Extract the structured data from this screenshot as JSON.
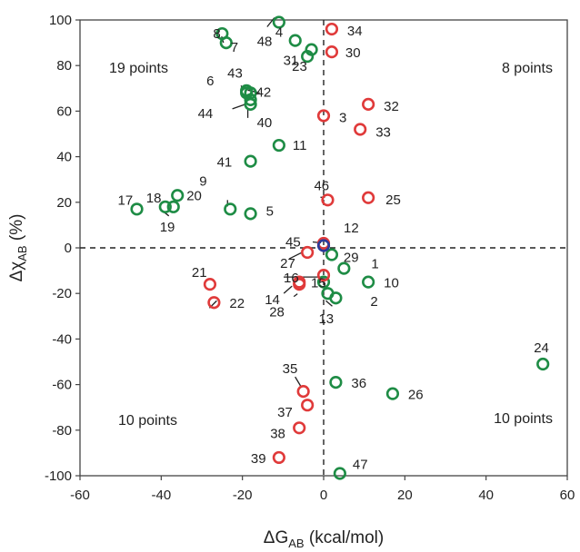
{
  "chart_data": {
    "type": "scatter",
    "xlabel": {
      "main": "ΔG",
      "sub": "AB",
      "unit": " (kcal/mol)"
    },
    "ylabel": {
      "main": "Δχ",
      "sub": "AB",
      "unit": " (%)"
    },
    "xlim": [
      -60,
      60
    ],
    "ylim": [
      -100,
      100
    ],
    "xticks": [
      "-60",
      "-40",
      "-20",
      "0",
      "20",
      "40",
      "60"
    ],
    "yticks": [
      "-100",
      "-80",
      "-60",
      "-40",
      "-20",
      "0",
      "20",
      "40",
      "60",
      "80",
      "100"
    ],
    "grid": false,
    "colors": {
      "green": "#1e8c45",
      "red": "#e03a3a",
      "blue": "#2a3a9a"
    },
    "quadrant_labels": [
      {
        "text": "19 points",
        "pos": "top-left"
      },
      {
        "text": "8 points",
        "pos": "top-right"
      },
      {
        "text": "10 points",
        "pos": "bottom-left"
      },
      {
        "text": "10 points",
        "pos": "bottom-right"
      }
    ],
    "points": [
      {
        "id": "1",
        "x": 5,
        "y": -9,
        "color": "green"
      },
      {
        "id": "2",
        "x": 3,
        "y": -22,
        "color": "green"
      },
      {
        "id": "3",
        "x": 0,
        "y": 58,
        "color": "red"
      },
      {
        "id": "4",
        "x": -11,
        "y": 99,
        "color": "green"
      },
      {
        "id": "5",
        "x": -18,
        "y": 15,
        "color": "green"
      },
      {
        "id": "6",
        "x": -19,
        "y": 69,
        "color": "green"
      },
      {
        "id": "7",
        "x": -24,
        "y": 90,
        "color": "green"
      },
      {
        "id": "8",
        "x": -25,
        "y": 94,
        "color": "green"
      },
      {
        "id": "9",
        "x": -23,
        "y": 17,
        "color": "green"
      },
      {
        "id": "10",
        "x": 11,
        "y": -15,
        "color": "green"
      },
      {
        "id": "11",
        "x": -11,
        "y": 45,
        "color": "green"
      },
      {
        "id": "12",
        "x": 0,
        "y": 2,
        "color": "red"
      },
      {
        "id": "13",
        "x": 1,
        "y": -20,
        "color": "green"
      },
      {
        "id": "14",
        "x": -6,
        "y": -16,
        "color": "red"
      },
      {
        "id": "15",
        "x": 0,
        "y": -15,
        "color": "green"
      },
      {
        "id": "16",
        "x": 0,
        "y": -12,
        "color": "red"
      },
      {
        "id": "17",
        "x": -46,
        "y": 17,
        "color": "green"
      },
      {
        "id": "18",
        "x": -39,
        "y": 18,
        "color": "green"
      },
      {
        "id": "19",
        "x": -37,
        "y": 18,
        "color": "green"
      },
      {
        "id": "20",
        "x": -36,
        "y": 23,
        "color": "green"
      },
      {
        "id": "21",
        "x": -28,
        "y": -16,
        "color": "red"
      },
      {
        "id": "22",
        "x": -27,
        "y": -24,
        "color": "red"
      },
      {
        "id": "23",
        "x": -4,
        "y": 84,
        "color": "green"
      },
      {
        "id": "24",
        "x": 54,
        "y": -51,
        "color": "green"
      },
      {
        "id": "25",
        "x": 11,
        "y": 22,
        "color": "red"
      },
      {
        "id": "26",
        "x": 17,
        "y": -64,
        "color": "green"
      },
      {
        "id": "27",
        "x": -4,
        "y": -2,
        "color": "red"
      },
      {
        "id": "28",
        "x": -6,
        "y": -15,
        "color": "red"
      },
      {
        "id": "29",
        "x": 2,
        "y": -3,
        "color": "green"
      },
      {
        "id": "30",
        "x": 2,
        "y": 86,
        "color": "red"
      },
      {
        "id": "31",
        "x": -3,
        "y": 87,
        "color": "green"
      },
      {
        "id": "32",
        "x": 11,
        "y": 63,
        "color": "red"
      },
      {
        "id": "33",
        "x": 9,
        "y": 52,
        "color": "red"
      },
      {
        "id": "34",
        "x": 2,
        "y": 96,
        "color": "red"
      },
      {
        "id": "35",
        "x": -5,
        "y": -63,
        "color": "red"
      },
      {
        "id": "36",
        "x": 3,
        "y": -59,
        "color": "green"
      },
      {
        "id": "37",
        "x": -4,
        "y": -69,
        "color": "red"
      },
      {
        "id": "38",
        "x": -6,
        "y": -79,
        "color": "red"
      },
      {
        "id": "39",
        "x": -11,
        "y": -92,
        "color": "red"
      },
      {
        "id": "40",
        "x": -18,
        "y": 63,
        "color": "green"
      },
      {
        "id": "41",
        "x": -18,
        "y": 38,
        "color": "green"
      },
      {
        "id": "42",
        "x": -18,
        "y": 68,
        "color": "green"
      },
      {
        "id": "43",
        "x": -19,
        "y": 68,
        "color": "green"
      },
      {
        "id": "44",
        "x": -18,
        "y": 65,
        "color": "green"
      },
      {
        "id": "45",
        "x": 0,
        "y": 1,
        "color": "blue"
      },
      {
        "id": "46",
        "x": 1,
        "y": 21,
        "color": "red"
      },
      {
        "id": "47",
        "x": 4,
        "y": -99,
        "color": "green"
      },
      {
        "id": "48",
        "x": -7,
        "y": 91,
        "color": "green"
      }
    ]
  }
}
